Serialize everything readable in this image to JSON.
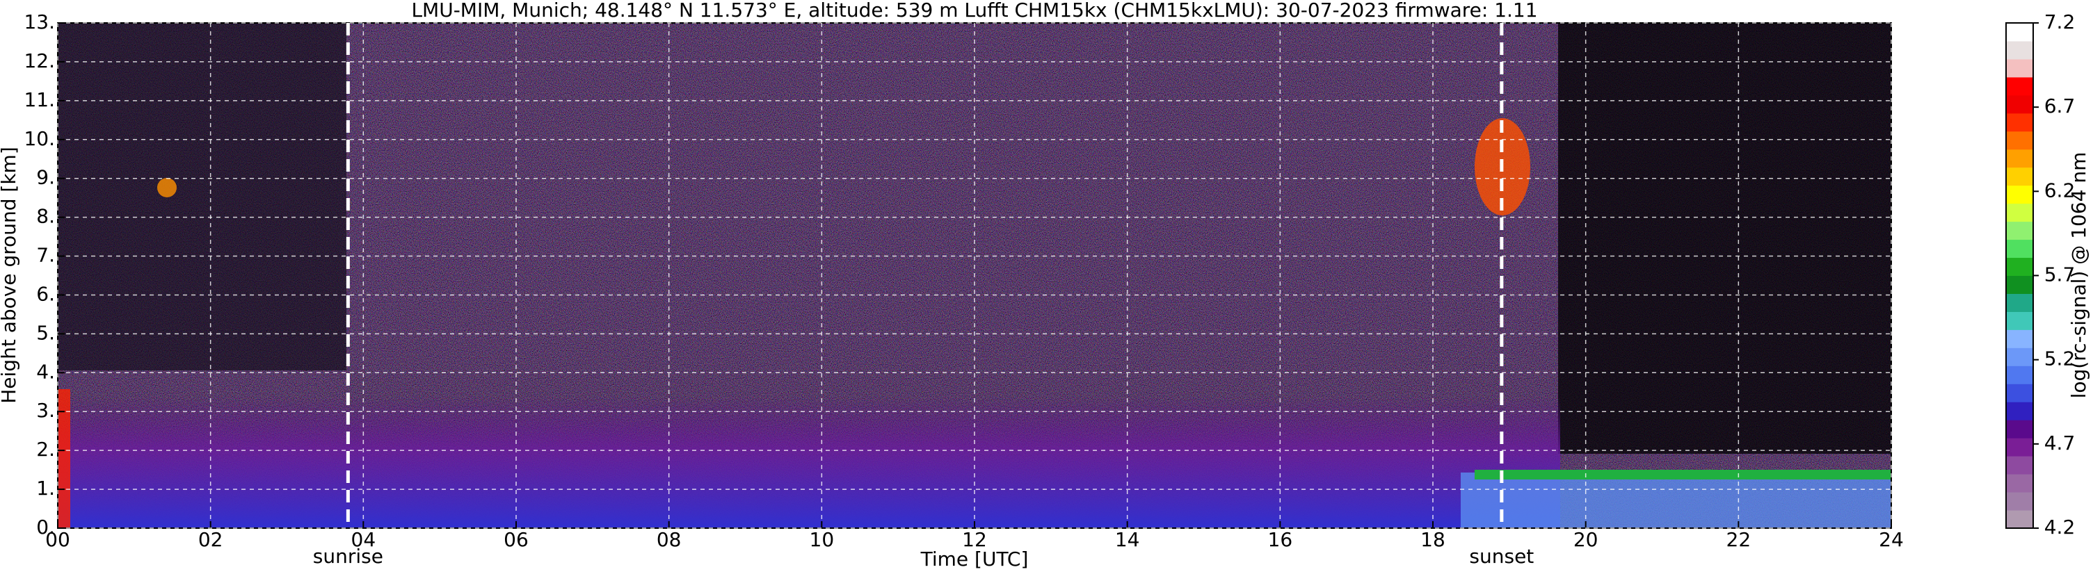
{
  "chart_data": {
    "type": "heatmap",
    "title": "LMU-MIM, Munich; 48.148° N 11.573° E, altitude: 539 m    Lufft CHM15kx (CHM15kxLMU): 30-07-2023    firmware: 1.11",
    "x_label": "Time [UTC]",
    "y_label": "Height above ground [km]",
    "xlim": [
      0,
      24
    ],
    "xticks": [
      {
        "value": 0,
        "label": "00"
      },
      {
        "value": 2,
        "label": "02"
      },
      {
        "value": 4,
        "label": "04"
      },
      {
        "value": 6,
        "label": "06"
      },
      {
        "value": 8,
        "label": "08"
      },
      {
        "value": 10,
        "label": "10"
      },
      {
        "value": 12,
        "label": "12"
      },
      {
        "value": 14,
        "label": "14"
      },
      16,
      18,
      20,
      22,
      24
    ],
    "ylim": [
      0,
      13
    ],
    "yticks": [
      {
        "value": 0,
        "label": "0."
      },
      {
        "value": 1,
        "label": "1."
      },
      {
        "value": 2,
        "label": "2."
      },
      {
        "value": 3,
        "label": "3."
      },
      {
        "value": 4,
        "label": "4."
      },
      {
        "value": 5,
        "label": "5."
      },
      {
        "value": 6,
        "label": "6."
      },
      {
        "value": 7,
        "label": "7."
      },
      {
        "value": 8,
        "label": "8."
      },
      {
        "value": 9,
        "label": "9."
      },
      {
        "value": 10,
        "label": "10."
      },
      {
        "value": 11,
        "label": "11."
      },
      {
        "value": 12,
        "label": "12."
      },
      {
        "value": 13,
        "label": "13."
      }
    ],
    "grid": true,
    "annotations": [
      {
        "x": 3.8,
        "text": "sunrise"
      },
      {
        "x": 18.9,
        "text": "sunset"
      }
    ],
    "colorbar": {
      "label": "log(rc-signal) @ 1064 nm",
      "lim": [
        4.2,
        7.2
      ],
      "ticks": [
        4.2,
        4.7,
        5.2,
        5.7,
        6.2,
        6.7,
        7.2
      ],
      "colors": [
        "#b09ab0",
        "#a07ea8",
        "#9a68a4",
        "#8e4aa0",
        "#7a1e96",
        "#5a0a8c",
        "#3020c0",
        "#3c50e0",
        "#5078f0",
        "#6c98f8",
        "#88b4ff",
        "#40c8b8",
        "#20a888",
        "#109020",
        "#20b020",
        "#50e060",
        "#90f070",
        "#d0ff40",
        "#ffff00",
        "#ffd000",
        "#ffa000",
        "#ff7000",
        "#ff3000",
        "#f00000",
        "#ff0000",
        "#f4c0c0",
        "#e8e0e0",
        "#ffffff"
      ]
    }
  }
}
